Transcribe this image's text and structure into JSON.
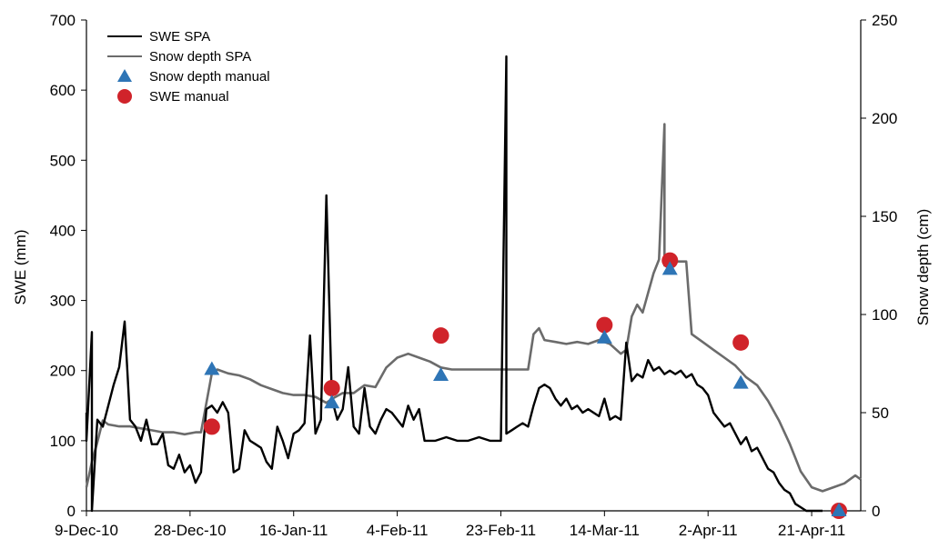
{
  "chart_data": {
    "type": "line",
    "title": "",
    "xlabel": "",
    "ylabel": "SWE (mm)",
    "y2label": "Snow depth (cm)",
    "ylim": [
      0,
      700
    ],
    "y2lim": [
      0,
      250
    ],
    "yticks": [
      "0",
      "100",
      "200",
      "300",
      "400",
      "500",
      "600",
      "700"
    ],
    "y2ticks": [
      "0",
      "50",
      "100",
      "150",
      "200",
      "250"
    ],
    "xlim": [
      "2010-12-09",
      "2011-04-30"
    ],
    "xtick_dates": [
      "2010-12-09",
      "2010-12-28",
      "2011-01-16",
      "2011-02-04",
      "2011-02-23",
      "2011-03-14",
      "2011-04-02",
      "2011-04-21"
    ],
    "xtick_labels": [
      "9-Dec-10",
      "28-Dec-10",
      "16-Jan-11",
      "4-Feb-11",
      "23-Feb-11",
      "14-Mar-11",
      "2-Apr-11",
      "21-Apr-11"
    ],
    "legend_placement": "top-left",
    "grid": false,
    "series": [
      {
        "name": "SWE SPA",
        "axis": "left",
        "style": "line",
        "color": "#000000",
        "points": [
          [
            "2010-12-09",
            140
          ],
          [
            "2010-12-09",
            100
          ],
          [
            "2010-12-10",
            255
          ],
          [
            "2010-12-10",
            0
          ],
          [
            "2010-12-11",
            130
          ],
          [
            "2010-12-12",
            120
          ],
          [
            "2010-12-13",
            150
          ],
          [
            "2010-12-14",
            180
          ],
          [
            "2010-12-15",
            205
          ],
          [
            "2010-12-16",
            270
          ],
          [
            "2010-12-17",
            130
          ],
          [
            "2010-12-18",
            120
          ],
          [
            "2010-12-19",
            100
          ],
          [
            "2010-12-20",
            130
          ],
          [
            "2010-12-21",
            95
          ],
          [
            "2010-12-22",
            95
          ],
          [
            "2010-12-23",
            110
          ],
          [
            "2010-12-24",
            65
          ],
          [
            "2010-12-25",
            60
          ],
          [
            "2010-12-26",
            80
          ],
          [
            "2010-12-27",
            55
          ],
          [
            "2010-12-28",
            65
          ],
          [
            "2010-12-29",
            40
          ],
          [
            "2010-12-30",
            55
          ],
          [
            "2010-12-31",
            145
          ],
          [
            "2011-01-01",
            150
          ],
          [
            "2011-01-02",
            140
          ],
          [
            "2011-01-03",
            155
          ],
          [
            "2011-01-04",
            140
          ],
          [
            "2011-01-05",
            55
          ],
          [
            "2011-01-06",
            60
          ],
          [
            "2011-01-07",
            115
          ],
          [
            "2011-01-08",
            100
          ],
          [
            "2011-01-09",
            95
          ],
          [
            "2011-01-10",
            90
          ],
          [
            "2011-01-11",
            70
          ],
          [
            "2011-01-12",
            60
          ],
          [
            "2011-01-13",
            120
          ],
          [
            "2011-01-14",
            100
          ],
          [
            "2011-01-15",
            75
          ],
          [
            "2011-01-16",
            110
          ],
          [
            "2011-01-17",
            115
          ],
          [
            "2011-01-18",
            125
          ],
          [
            "2011-01-19",
            250
          ],
          [
            "2011-01-20",
            110
          ],
          [
            "2011-01-21",
            130
          ],
          [
            "2011-01-22",
            450
          ],
          [
            "2011-01-23",
            160
          ],
          [
            "2011-01-24",
            130
          ],
          [
            "2011-01-25",
            145
          ],
          [
            "2011-01-26",
            205
          ],
          [
            "2011-01-27",
            120
          ],
          [
            "2011-01-28",
            110
          ],
          [
            "2011-01-29",
            175
          ],
          [
            "2011-01-30",
            120
          ],
          [
            "2011-01-31",
            110
          ],
          [
            "2011-02-01",
            130
          ],
          [
            "2011-02-02",
            145
          ],
          [
            "2011-02-03",
            140
          ],
          [
            "2011-02-04",
            130
          ],
          [
            "2011-02-05",
            120
          ],
          [
            "2011-02-06",
            150
          ],
          [
            "2011-02-07",
            130
          ],
          [
            "2011-02-08",
            145
          ],
          [
            "2011-02-09",
            100
          ],
          [
            "2011-02-11",
            100
          ],
          [
            "2011-02-13",
            105
          ],
          [
            "2011-02-15",
            100
          ],
          [
            "2011-02-17",
            100
          ],
          [
            "2011-02-19",
            105
          ],
          [
            "2011-02-21",
            100
          ],
          [
            "2011-02-23",
            100
          ],
          [
            "2011-02-24",
            648
          ],
          [
            "2011-02-24",
            110
          ],
          [
            "2011-02-25",
            115
          ],
          [
            "2011-02-26",
            120
          ],
          [
            "2011-02-27",
            125
          ],
          [
            "2011-02-28",
            120
          ],
          [
            "2011-03-01",
            150
          ],
          [
            "2011-03-02",
            175
          ],
          [
            "2011-03-03",
            180
          ],
          [
            "2011-03-04",
            175
          ],
          [
            "2011-03-05",
            160
          ],
          [
            "2011-03-06",
            150
          ],
          [
            "2011-03-07",
            160
          ],
          [
            "2011-03-08",
            145
          ],
          [
            "2011-03-09",
            150
          ],
          [
            "2011-03-10",
            140
          ],
          [
            "2011-03-11",
            145
          ],
          [
            "2011-03-12",
            140
          ],
          [
            "2011-03-13",
            135
          ],
          [
            "2011-03-14",
            160
          ],
          [
            "2011-03-15",
            130
          ],
          [
            "2011-03-16",
            135
          ],
          [
            "2011-03-17",
            130
          ],
          [
            "2011-03-18",
            240
          ],
          [
            "2011-03-19",
            185
          ],
          [
            "2011-03-20",
            195
          ],
          [
            "2011-03-21",
            190
          ],
          [
            "2011-03-22",
            215
          ],
          [
            "2011-03-23",
            200
          ],
          [
            "2011-03-24",
            205
          ],
          [
            "2011-03-25",
            195
          ],
          [
            "2011-03-26",
            200
          ],
          [
            "2011-03-27",
            195
          ],
          [
            "2011-03-28",
            200
          ],
          [
            "2011-03-29",
            190
          ],
          [
            "2011-03-30",
            195
          ],
          [
            "2011-03-31",
            180
          ],
          [
            "2011-04-01",
            175
          ],
          [
            "2011-04-02",
            165
          ],
          [
            "2011-04-03",
            140
          ],
          [
            "2011-04-04",
            130
          ],
          [
            "2011-04-05",
            120
          ],
          [
            "2011-04-06",
            125
          ],
          [
            "2011-04-07",
            110
          ],
          [
            "2011-04-08",
            95
          ],
          [
            "2011-04-09",
            105
          ],
          [
            "2011-04-10",
            85
          ],
          [
            "2011-04-11",
            90
          ],
          [
            "2011-04-12",
            75
          ],
          [
            "2011-04-13",
            60
          ],
          [
            "2011-04-14",
            55
          ],
          [
            "2011-04-15",
            40
          ],
          [
            "2011-04-16",
            30
          ],
          [
            "2011-04-17",
            25
          ],
          [
            "2011-04-18",
            10
          ],
          [
            "2011-04-19",
            5
          ],
          [
            "2011-04-20",
            0
          ],
          [
            "2011-04-23",
            0
          ]
        ]
      },
      {
        "name": "Snow depth SPA",
        "axis": "right",
        "style": "line",
        "color": "#6b6b6b",
        "points": [
          [
            "2010-12-09",
            12
          ],
          [
            "2010-12-10",
            25
          ],
          [
            "2010-12-11",
            35
          ],
          [
            "2010-12-12",
            46
          ],
          [
            "2010-12-13",
            44
          ],
          [
            "2010-12-15",
            43
          ],
          [
            "2010-12-17",
            43
          ],
          [
            "2010-12-19",
            42
          ],
          [
            "2010-12-21",
            41
          ],
          [
            "2010-12-23",
            40
          ],
          [
            "2010-12-25",
            40
          ],
          [
            "2010-12-27",
            39
          ],
          [
            "2010-12-29",
            40
          ],
          [
            "2010-12-30",
            40
          ],
          [
            "2011-01-01",
            70
          ],
          [
            "2011-01-02",
            72
          ],
          [
            "2011-01-04",
            70
          ],
          [
            "2011-01-06",
            69
          ],
          [
            "2011-01-08",
            67
          ],
          [
            "2011-01-10",
            64
          ],
          [
            "2011-01-12",
            62
          ],
          [
            "2011-01-14",
            60
          ],
          [
            "2011-01-16",
            59
          ],
          [
            "2011-01-18",
            59
          ],
          [
            "2011-01-20",
            58
          ],
          [
            "2011-01-22",
            55
          ],
          [
            "2011-01-23",
            57
          ],
          [
            "2011-01-25",
            60
          ],
          [
            "2011-01-27",
            60
          ],
          [
            "2011-01-29",
            64
          ],
          [
            "2011-01-31",
            63
          ],
          [
            "2011-02-02",
            73
          ],
          [
            "2011-02-04",
            78
          ],
          [
            "2011-02-06",
            80
          ],
          [
            "2011-02-08",
            78
          ],
          [
            "2011-02-10",
            76
          ],
          [
            "2011-02-12",
            73
          ],
          [
            "2011-02-14",
            72
          ],
          [
            "2011-02-16",
            72
          ],
          [
            "2011-02-18",
            72
          ],
          [
            "2011-02-20",
            72
          ],
          [
            "2011-02-22",
            72
          ],
          [
            "2011-02-24",
            72
          ],
          [
            "2011-02-26",
            72
          ],
          [
            "2011-02-28",
            72
          ],
          [
            "2011-03-01",
            90
          ],
          [
            "2011-03-02",
            93
          ],
          [
            "2011-03-03",
            87
          ],
          [
            "2011-03-05",
            86
          ],
          [
            "2011-03-07",
            85
          ],
          [
            "2011-03-09",
            86
          ],
          [
            "2011-03-11",
            85
          ],
          [
            "2011-03-13",
            87
          ],
          [
            "2011-03-15",
            85
          ],
          [
            "2011-03-17",
            80
          ],
          [
            "2011-03-18",
            82
          ],
          [
            "2011-03-19",
            99
          ],
          [
            "2011-03-20",
            105
          ],
          [
            "2011-03-21",
            101
          ],
          [
            "2011-03-23",
            121
          ],
          [
            "2011-03-24",
            128
          ],
          [
            "2011-03-25",
            197
          ],
          [
            "2011-03-25",
            125
          ],
          [
            "2011-03-27",
            127
          ],
          [
            "2011-03-29",
            127
          ],
          [
            "2011-03-30",
            90
          ],
          [
            "2011-04-01",
            86
          ],
          [
            "2011-04-03",
            82
          ],
          [
            "2011-04-05",
            78
          ],
          [
            "2011-04-07",
            74
          ],
          [
            "2011-04-09",
            68
          ],
          [
            "2011-04-11",
            64
          ],
          [
            "2011-04-13",
            56
          ],
          [
            "2011-04-15",
            46
          ],
          [
            "2011-04-17",
            34
          ],
          [
            "2011-04-19",
            20
          ],
          [
            "2011-04-21",
            12
          ],
          [
            "2011-04-23",
            10
          ],
          [
            "2011-04-25",
            12
          ],
          [
            "2011-04-27",
            14
          ],
          [
            "2011-04-29",
            18
          ],
          [
            "2011-04-30",
            16
          ]
        ]
      },
      {
        "name": "Snow depth manual",
        "axis": "right",
        "style": "triangle",
        "color": "#2e75b6",
        "points": [
          [
            "2011-01-01",
            72
          ],
          [
            "2011-01-23",
            55
          ],
          [
            "2011-02-12",
            69
          ],
          [
            "2011-03-14",
            88
          ],
          [
            "2011-03-26",
            123
          ],
          [
            "2011-04-08",
            65
          ],
          [
            "2011-04-26",
            0
          ]
        ]
      },
      {
        "name": "SWE manual",
        "axis": "left",
        "style": "circle",
        "color": "#d0232a",
        "points": [
          [
            "2011-01-01",
            120
          ],
          [
            "2011-01-23",
            175
          ],
          [
            "2011-02-12",
            250
          ],
          [
            "2011-03-14",
            265
          ],
          [
            "2011-03-26",
            357
          ],
          [
            "2011-04-08",
            240
          ],
          [
            "2011-04-26",
            0
          ]
        ]
      }
    ]
  }
}
